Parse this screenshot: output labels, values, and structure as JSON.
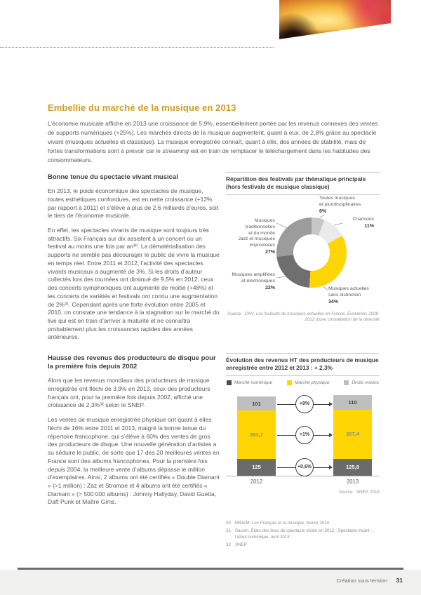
{
  "article": {
    "title": "Embellie du marché de la musique en 2013",
    "intro": {
      "part1": "L’économie musicale affiche en 2013 une croissance de 5,9%, essentiellement portée par les revenus connexes des ventes de supports numériques (+25%). Les marchés directs de la musique augmentent, quant à eux, de 2,8% grâce au spectacle vivant (musiques actuelles et classique). La musique enregistrée connaît, quant à elle, des années de stabilité, mais de fortes transformations sont à prévoir car le ",
      "italic": "streaming",
      "part2": " est en train de remplacer le téléchargement dans les habitudes des consommateurs."
    },
    "sections": [
      {
        "heading": "Bonne tenue du spectacle vivant musical",
        "paragraphs": [
          "En 2013, le poids économique des spectacles de musique, toutes esthétiques confondues, est en nette croissance (+12% par rapport à 2011) et s’élève à plus de 2,6 milliards d’euros, soit le tiers de l’économie musicale.",
          "En effet, les spectacles vivants de musique sont toujours très attractifs. Six Français sur dix assistent à un concert ou un festival au moins une fois par an³⁰. La dématérialisation des supports ne semble pas décourager le public de vivre la musique en temps réel. Entre 2011 et 2012, l’activité des spectacles vivants musicaux a augmenté de 3%. Si les droits d’auteur collectés lors des tournées ont diminué de 9,5% en 2012, ceux des concerts symphoniques ont augmenté de moitié (+48%) et les concerts de variétés et festivals ont connu une augmentation de 2%³¹. Cependant après une forte évolution entre 2005 et 2010, on constate une tendance à la stagnation sur le marché du live qui est en train d’arriver à maturité et ne connaîtra probablement plus les croissances rapides des années antérieures."
        ]
      },
      {
        "heading": "Hausse des revenus des producteurs de disque pour la première fois depuis 2002",
        "paragraphs": [
          "Alors que les revenus mondiaux des producteurs de musique enregistrée ont fléchi de 3,9% en 2013, ceux des producteurs français ont, pour la première fois depuis 2002, affiché une croissance de 2,3%³² selon le SNEP.",
          "Les ventes de musique enregistrée physique ont quant à elles fléchi de 16% entre 2011 et 2013, malgré la bonne tenue du répertoire francophone, qui s’élève à 60% des ventes de gros des producteurs de disque. Une nouvelle génération d’artistes a su séduire le public, de sorte que 17 des 20 meilleures ventes en France sont des albums francophones. Pour la première fois depuis 2004, la meilleure vente d’albums dépasse le million d’exemplaires. Ainsi, 2 albums ont été certifiés « Double Diamant » (>1 million) : Zaz et Stromae et 4 albums ont été certifiés « Diamant » (> 500 000 albums) : Johnny Hallyday, David Guetta, Daft Punk et Maître Gims."
        ]
      }
    ],
    "footnotes": [
      {
        "num": "30",
        "text": "MIDEM, Les Français et la musique, février 2014"
      },
      {
        "num": "31",
        "text": "Sacem, États des lieux du spectacle vivant en 2012 : Spectacle vivant : l’atout numérique, avril 2013"
      },
      {
        "num": "32",
        "text": "SNEP"
      }
    ]
  },
  "chart_data": [
    {
      "type": "pie",
      "donut": true,
      "title_lines": [
        "Répartition des festivals par thématique principale",
        "(hors festivals de musique classique)"
      ],
      "segments": [
        {
          "label_lines": [
            "Toutes musiques",
            "et pluridisciplinaires"
          ],
          "value": 6,
          "value_label": "6%",
          "color": "#c6c6c6"
        },
        {
          "label_lines": [
            "Chansons"
          ],
          "value": 11,
          "value_label": "11%",
          "color": "#ebebeb"
        },
        {
          "label_lines": [
            "Musiques actuelles",
            "sans distinction"
          ],
          "value": 34,
          "value_label": "34%",
          "color": "#ffd503"
        },
        {
          "label_lines": [
            "Musiques amplifiées",
            "et électroniques"
          ],
          "value": 22,
          "value_label": "22%",
          "color": "#6f6f6f"
        },
        {
          "label_lines": [
            "Musiques traditionnelles",
            "et du monde",
            "Jazz et musiques",
            "improvisées"
          ],
          "value": 27,
          "value_label": "27%",
          "color": "#9c9c9c"
        }
      ],
      "source_prefix": "Source : CNV, ",
      "source_italic": "Les festivals de musiques actuelles en France, Évolutions 2008-2012 d’une constellation de la diversité"
    },
    {
      "type": "bar",
      "stacked": true,
      "title_lines": [
        "Évolution des revenus HT des producteurs de musique",
        "enregistrée entre 2012 et 2013 : + 2,3%"
      ],
      "categories": [
        "2012",
        "2013"
      ],
      "series": [
        {
          "name": "Droits voisins",
          "values": [
            101,
            110
          ],
          "labels": [
            "101",
            "110"
          ],
          "color": "#bfbfbf",
          "text_color": "#3f3f3f",
          "change": "+9%"
        },
        {
          "name": "Marché physique",
          "values": [
            363.7,
            367.4
          ],
          "labels": [
            "363,7",
            "367,4"
          ],
          "color": "#ffd503",
          "text_color": "#8c8c8c",
          "change": "+1%"
        },
        {
          "name": "Marché numérique",
          "values": [
            125,
            125.8
          ],
          "labels": [
            "125",
            "125,8"
          ],
          "color": "#6b6b6b",
          "text_color": "#ffffff",
          "change": "+0,6%"
        }
      ],
      "legend": [
        {
          "label": "Marché numérique",
          "color": "#4d4d4d"
        },
        {
          "label": "Marché physique",
          "color": "#ffd503"
        },
        {
          "label": "Droits voisins",
          "color": "#bfbfbf"
        }
      ],
      "source": "Source : SNEP, 2014"
    }
  ],
  "footer": {
    "label": "Création sous tension",
    "page_number": "31"
  },
  "colors": {
    "accent_gold": "#d49c22",
    "chart_yellow": "#ffd503"
  }
}
